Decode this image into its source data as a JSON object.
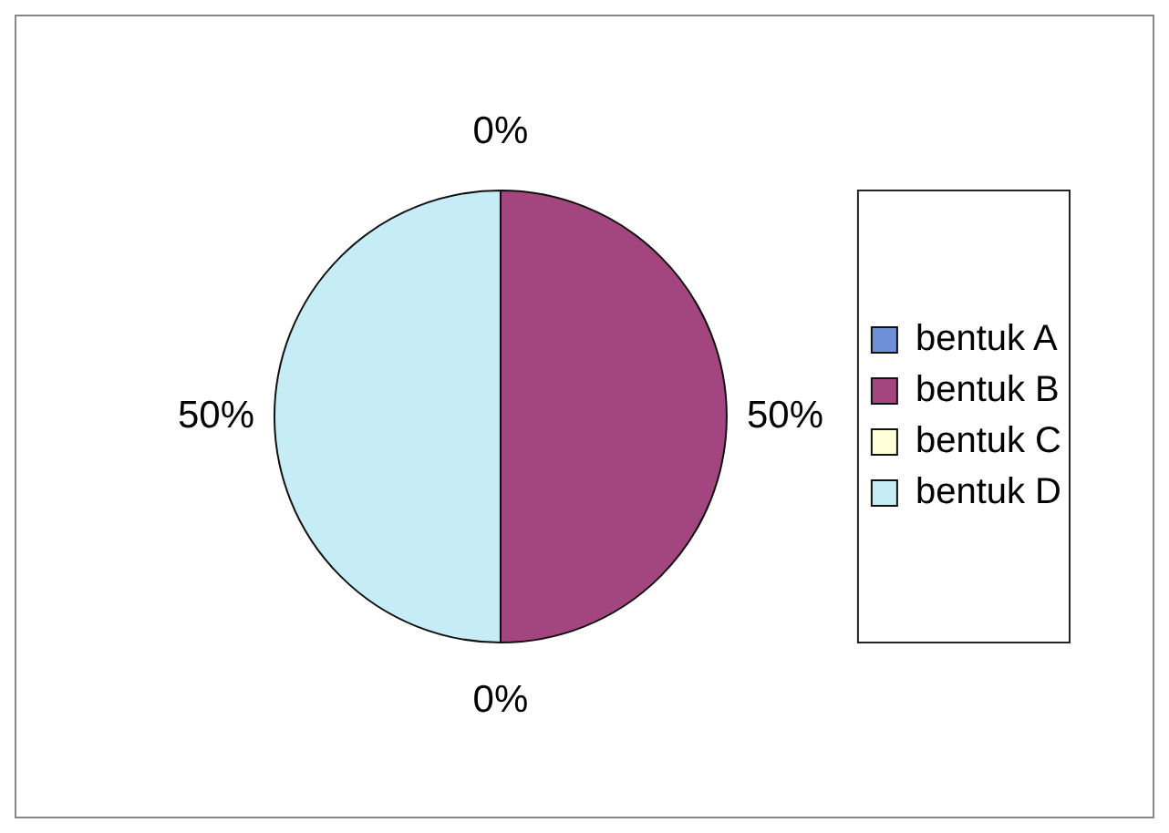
{
  "chart_data": {
    "type": "pie",
    "categories": [
      "bentuk A",
      "bentuk B",
      "bentuk C",
      "bentuk D"
    ],
    "values": [
      0,
      50,
      0,
      50
    ],
    "colors": [
      "#6f8fd8",
      "#a3467f",
      "#ffffd8",
      "#c6ecf6"
    ],
    "value_labels": [
      "0%",
      "50%",
      "0%",
      "50%"
    ],
    "legend": "right"
  }
}
